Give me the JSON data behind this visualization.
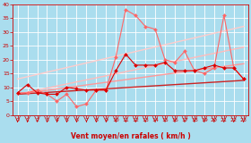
{
  "bg_color": "#aaddee",
  "grid_color": "#ffffff",
  "xlabel": "Vent moyen/en rafales ( km/h )",
  "xlim": [
    -0.5,
    23.5
  ],
  "ylim": [
    0,
    40
  ],
  "xticks": [
    0,
    1,
    2,
    3,
    4,
    5,
    6,
    7,
    8,
    9,
    10,
    11,
    12,
    13,
    14,
    15,
    16,
    17,
    18,
    19,
    20,
    21,
    22,
    23
  ],
  "yticks": [
    0,
    5,
    10,
    15,
    20,
    25,
    30,
    35,
    40
  ],
  "regression_lines": [
    {
      "x0": 0,
      "y0": 7.5,
      "x1": 23,
      "y1": 18.5,
      "color": "#ff9999",
      "lw": 1.0
    },
    {
      "x0": 0,
      "y0": 7.5,
      "x1": 23,
      "y1": 24.5,
      "color": "#ffbbbb",
      "lw": 1.0
    },
    {
      "x0": 0,
      "y0": 13.0,
      "x1": 23,
      "y1": 32.0,
      "color": "#ffcccc",
      "lw": 1.0
    },
    {
      "x0": 0,
      "y0": 7.5,
      "x1": 23,
      "y1": 12.5,
      "color": "#cc2222",
      "lw": 1.0
    }
  ],
  "data_series": [
    {
      "x": [
        0,
        1,
        2,
        3,
        4,
        5,
        6,
        7,
        8,
        9,
        10,
        11,
        12,
        13,
        14,
        15,
        16,
        17,
        18,
        19,
        20,
        21,
        22,
        23
      ],
      "y": [
        8,
        8,
        9,
        7.5,
        5,
        7.5,
        3,
        4,
        9,
        9,
        21,
        38,
        36,
        32,
        31,
        20,
        19,
        23,
        16,
        15,
        17,
        36,
        17,
        13
      ],
      "color": "#ff6666",
      "lw": 0.8,
      "marker": "D",
      "ms": 2.0
    },
    {
      "x": [
        0,
        1,
        2,
        3,
        4,
        5,
        6,
        7,
        8,
        9,
        10,
        11,
        12,
        13,
        14,
        15,
        16,
        17,
        18,
        19,
        20,
        21,
        22,
        23
      ],
      "y": [
        8,
        11,
        8,
        7.5,
        7.5,
        10,
        9.5,
        9,
        9,
        9,
        16,
        22,
        18,
        18,
        18,
        19,
        16,
        16,
        16,
        17,
        18,
        17,
        17,
        13
      ],
      "color": "#dd0000",
      "lw": 0.8,
      "marker": "D",
      "ms": 2.0
    }
  ],
  "label_color": "#cc0000",
  "tick_labelsize": 4.5,
  "xlabel_fontsize": 5.5
}
